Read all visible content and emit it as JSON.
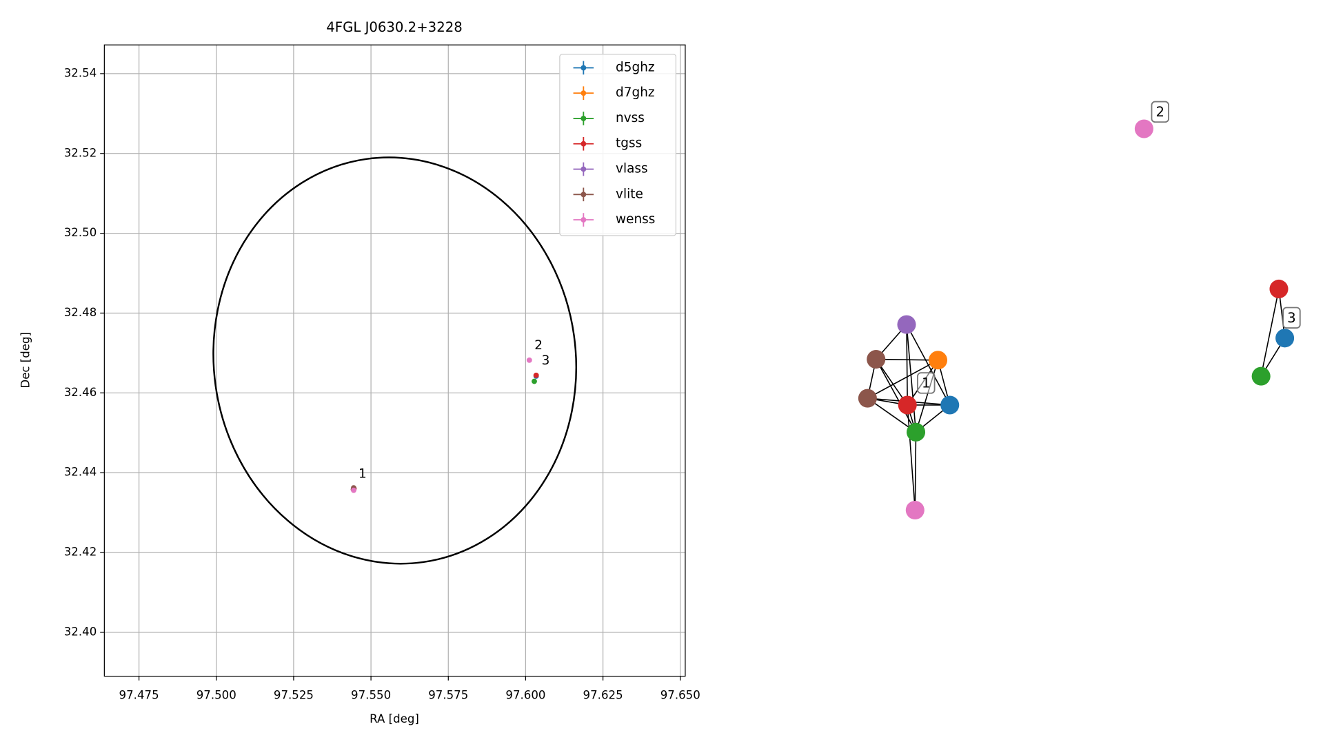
{
  "chart_data": [
    {
      "type": "scatter",
      "title": "4FGL J0630.2+3228",
      "xlabel": "RA [deg]",
      "ylabel": "Dec [deg]",
      "xlim": [
        97.4638,
        97.6516
      ],
      "ylim": [
        32.389,
        32.5472
      ],
      "xticks": [
        97.475,
        {
          "value": 97.5,
          "label": "97.500"
        },
        97.525,
        {
          "value": 97.55,
          "label": "97.550"
        },
        97.575,
        {
          "value": 97.6,
          "label": "97.600"
        },
        97.625,
        {
          "value": 97.65,
          "label": "97.650"
        }
      ],
      "yticks": [
        {
          "value": 32.4,
          "label": "32.40"
        },
        32.42,
        32.44,
        32.46,
        32.48,
        {
          "value": 32.5,
          "label": "32.50"
        },
        32.52,
        32.54
      ],
      "grid": true,
      "legend": "upper right",
      "series": [
        {
          "name": "d5ghz",
          "color": "#1f77b4",
          "x": [
            97.5444,
            97.6034
          ],
          "y": [
            32.4359,
            32.4642
          ]
        },
        {
          "name": "d7ghz",
          "color": "#ff7f0e",
          "x": [
            97.5444
          ],
          "y": [
            32.4359
          ]
        },
        {
          "name": "nvss",
          "color": "#2ca02c",
          "x": [
            97.5444,
            97.6028
          ],
          "y": [
            32.4358,
            32.4629
          ]
        },
        {
          "name": "tgss",
          "color": "#d62728",
          "x": [
            97.5445,
            97.6034
          ],
          "y": [
            32.436,
            32.4644
          ]
        },
        {
          "name": "vlass",
          "color": "#9467bd",
          "x": [
            97.5444
          ],
          "y": [
            32.4359
          ]
        },
        {
          "name": "vlite",
          "color": "#8c564b",
          "x": [
            97.5444,
            97.5443
          ],
          "y": [
            32.4362,
            32.4358
          ]
        },
        {
          "name": "wenss",
          "color": "#e377c2",
          "x": [
            97.5444,
            97.6012
          ],
          "y": [
            32.4356,
            32.4682
          ]
        }
      ],
      "ellipse": {
        "x": 97.5577,
        "y": 32.4681,
        "semi_x": 0.0585,
        "semi_y": 0.051,
        "angle": 8,
        "color": "#000000"
      },
      "annotations": [
        {
          "text": "1",
          "x": 97.5446,
          "y": 32.4364
        },
        {
          "text": "2",
          "x": 97.6015,
          "y": 32.4686
        },
        {
          "text": "3",
          "x": 97.6038,
          "y": 32.4648
        }
      ]
    },
    {
      "type": "network",
      "nodes": [
        {
          "catalog": "vlass",
          "color": "#9467bd"
        },
        {
          "catalog": "vlite",
          "color": "#8c564b"
        },
        {
          "catalog": "d7ghz",
          "color": "#ff7f0e"
        },
        {
          "catalog": "vlite",
          "color": "#8c564b"
        },
        {
          "catalog": "tgss",
          "color": "#d62728"
        },
        {
          "catalog": "d5ghz",
          "color": "#1f77b4"
        },
        {
          "catalog": "nvss",
          "color": "#2ca02c"
        },
        {
          "catalog": "wenss",
          "color": "#e377c2"
        },
        {
          "catalog": "wenss",
          "color": "#e377c2"
        },
        {
          "catalog": "tgss",
          "color": "#d62728"
        },
        {
          "catalog": "d5ghz",
          "color": "#1f77b4"
        },
        {
          "catalog": "nvss",
          "color": "#2ca02c"
        }
      ],
      "edges": [
        [
          0,
          4
        ],
        [
          0,
          6
        ],
        [
          0,
          1
        ],
        [
          0,
          5
        ],
        [
          1,
          2
        ],
        [
          1,
          4
        ],
        [
          1,
          6
        ],
        [
          1,
          3
        ],
        [
          3,
          4
        ],
        [
          3,
          5
        ],
        [
          3,
          6
        ],
        [
          3,
          2
        ],
        [
          2,
          4
        ],
        [
          2,
          5
        ],
        [
          2,
          6
        ],
        [
          4,
          6
        ],
        [
          4,
          7
        ],
        [
          6,
          7
        ],
        [
          4,
          5
        ],
        [
          6,
          5
        ],
        [
          9,
          10
        ],
        [
          9,
          11
        ],
        [
          10,
          11
        ]
      ],
      "labels": [
        "1",
        "2",
        "3"
      ]
    }
  ]
}
